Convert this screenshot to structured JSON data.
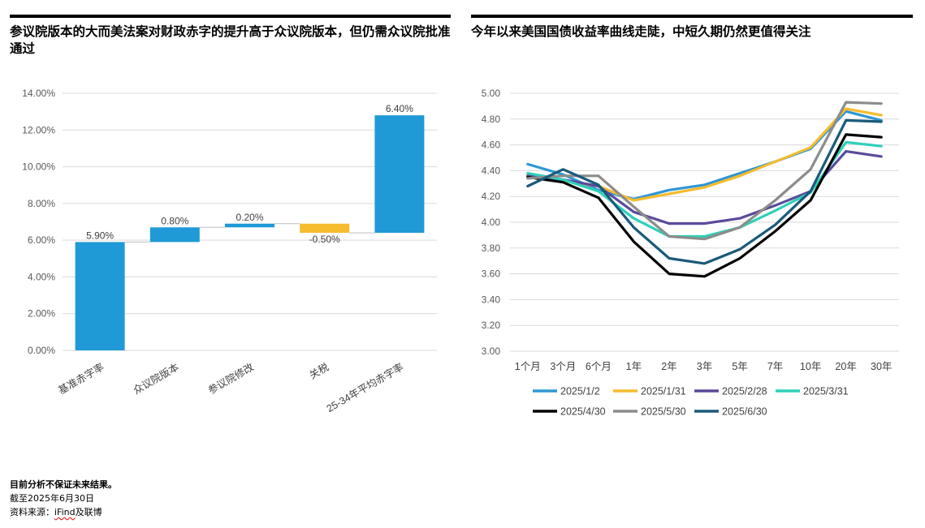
{
  "left_chart": {
    "title": "参议院版本的大而美法案对财政赤字的提升高于众议院版本，但仍需众议院批准通过"
  },
  "right_chart": {
    "title": "今年以来美国国债收益率曲线走陡，中短久期仍然更值得关注"
  },
  "footer": {
    "disclaimer": "目前分析不保证未来结果。",
    "date": "截至2025年6月30日",
    "source_prefix": "资料来源：",
    "source_ifind": "iFind",
    "source_suffix": "及联博"
  },
  "colors": {
    "blue": "#1f9ad6",
    "yellow": "#f5bc2e",
    "s_jan2": "#2f97d4",
    "s_jan31": "#f5bc2e",
    "s_feb28": "#5b4a9b",
    "s_mar31": "#2fd0b8",
    "s_apr30": "#000000",
    "s_may30": "#8c8c8c",
    "s_jun30": "#1b5a7a"
  },
  "chart_data": [
    {
      "type": "bar",
      "subtype": "waterfall",
      "categories": [
        "基准赤字率",
        "众议院版本",
        "参议院修改",
        "关税",
        "25-34年平均赤字率"
      ],
      "values": [
        5.9,
        0.8,
        0.2,
        -0.5,
        6.4
      ],
      "data_labels": [
        "5.90%",
        "0.80%",
        "0.20%",
        "-0.50%",
        "6.40%"
      ],
      "bar_colors": [
        "blue",
        "blue",
        "blue",
        "yellow",
        "blue"
      ],
      "ylim": [
        0,
        14
      ],
      "yticks": [
        "0.00%",
        "2.00%",
        "4.00%",
        "6.00%",
        "8.00%",
        "10.00%",
        "12.00%",
        "14.00%"
      ],
      "grid": true
    },
    {
      "type": "line",
      "categories": [
        "1个月",
        "3个月",
        "6个月",
        "1年",
        "2年",
        "3年",
        "5年",
        "7年",
        "10年",
        "20年",
        "30年"
      ],
      "ylim": [
        3.0,
        5.0
      ],
      "yticks": [
        "3.00",
        "3.20",
        "3.40",
        "3.60",
        "3.80",
        "4.00",
        "4.20",
        "4.40",
        "4.60",
        "4.80",
        "5.00"
      ],
      "grid": true,
      "legend_position": "bottom",
      "series": [
        {
          "name": "2025/1/2",
          "color": "s_jan2",
          "values": [
            4.45,
            4.37,
            4.25,
            4.18,
            4.25,
            4.29,
            4.38,
            4.47,
            4.57,
            4.86,
            4.79
          ]
        },
        {
          "name": "2025/1/31",
          "color": "s_jan31",
          "values": [
            4.37,
            4.32,
            4.28,
            4.17,
            4.22,
            4.27,
            4.36,
            4.47,
            4.58,
            4.88,
            4.83
          ]
        },
        {
          "name": "2025/2/28",
          "color": "s_feb28",
          "values": [
            4.36,
            4.33,
            4.28,
            4.08,
            3.99,
            3.99,
            4.03,
            4.13,
            4.24,
            4.55,
            4.51
          ]
        },
        {
          "name": "2025/3/31",
          "color": "s_mar31",
          "values": [
            4.38,
            4.33,
            4.24,
            4.03,
            3.89,
            3.89,
            3.96,
            4.09,
            4.23,
            4.62,
            4.59
          ]
        },
        {
          "name": "2025/4/30",
          "color": "s_apr30",
          "values": [
            4.35,
            4.31,
            4.19,
            3.85,
            3.6,
            3.58,
            3.72,
            3.93,
            4.17,
            4.68,
            4.66
          ]
        },
        {
          "name": "2025/5/30",
          "color": "s_may30",
          "values": [
            4.34,
            4.36,
            4.36,
            4.12,
            3.89,
            3.87,
            3.96,
            4.17,
            4.41,
            4.93,
            4.92
          ]
        },
        {
          "name": "2025/6/30",
          "color": "s_jun30",
          "values": [
            4.28,
            4.41,
            4.29,
            3.96,
            3.72,
            3.68,
            3.79,
            3.98,
            4.24,
            4.79,
            4.78
          ]
        }
      ]
    }
  ]
}
